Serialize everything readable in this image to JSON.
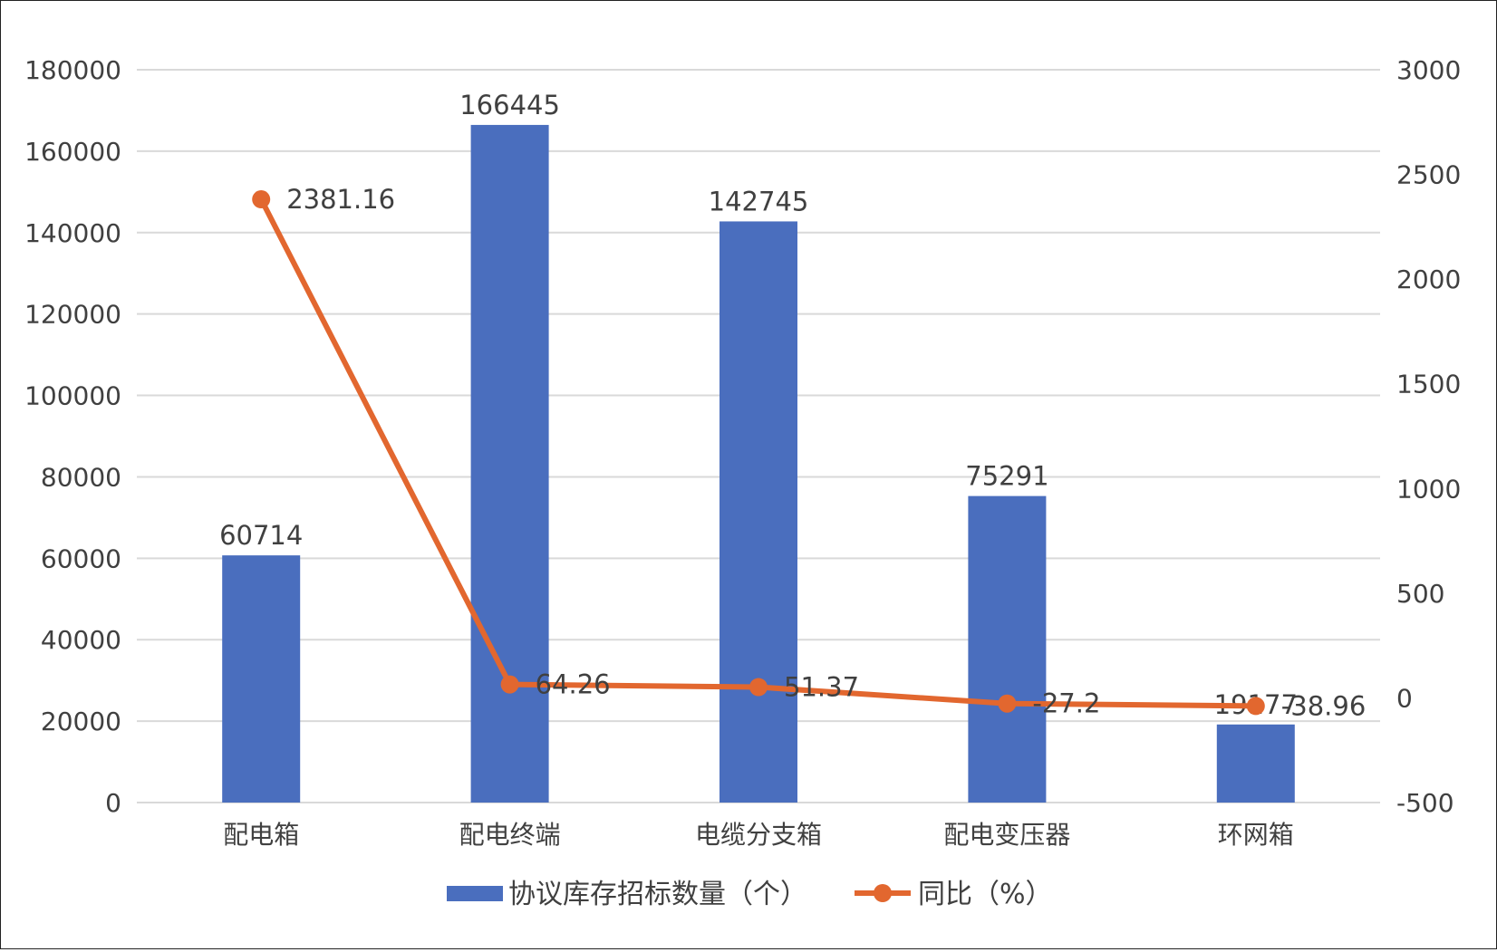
{
  "chart_data": {
    "type": "bar+line",
    "categories": [
      "配电箱",
      "配电终端",
      "电缆分支箱",
      "配电变压器",
      "环网箱"
    ],
    "series": [
      {
        "name": "协议库存招标数量（个）",
        "type": "bar",
        "axis": "left",
        "values": [
          60714,
          166445,
          142745,
          75291,
          19177
        ],
        "labels": [
          "60714",
          "166445",
          "142745",
          "75291",
          "19177"
        ],
        "color": "#4a6ebe"
      },
      {
        "name": "同比（%）",
        "type": "line",
        "axis": "right",
        "values": [
          2381.16,
          64.26,
          51.37,
          -27.2,
          -38.96
        ],
        "labels": [
          "2381.16",
          "64.26",
          "51.37",
          "-27.2",
          "-38.96"
        ],
        "color": "#e2672f"
      }
    ],
    "y_left": {
      "min": 0,
      "max": 180000,
      "ticks": [
        "0",
        "20000",
        "40000",
        "60000",
        "80000",
        "100000",
        "120000",
        "140000",
        "160000",
        "180000"
      ]
    },
    "y_right": {
      "min": -500,
      "max": 3000,
      "ticks": [
        "-500",
        "0",
        "500",
        "1000",
        "1500",
        "2000",
        "2500",
        "3000"
      ]
    },
    "grid": true,
    "legend": "bottom"
  }
}
